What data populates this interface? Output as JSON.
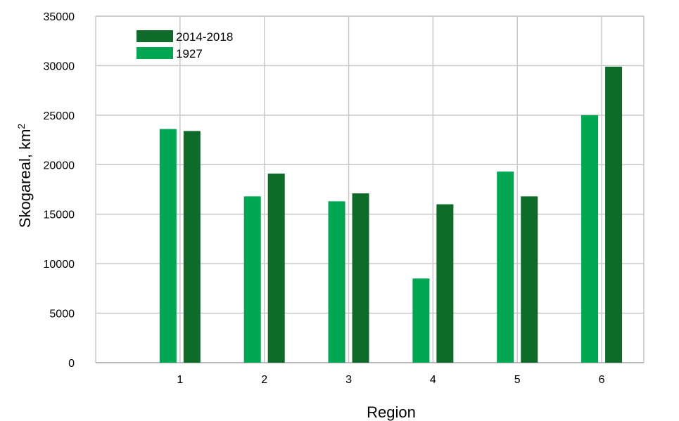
{
  "chart_data": {
    "type": "bar",
    "categories": [
      "1",
      "2",
      "3",
      "4",
      "5",
      "6"
    ],
    "series": [
      {
        "name": "1927",
        "color": "#00a651",
        "values": [
          23600,
          16800,
          16300,
          8500,
          19300,
          25000
        ]
      },
      {
        "name": "2014-2018",
        "color": "#0f6b2a",
        "values": [
          23400,
          19100,
          17100,
          16000,
          16800,
          29900
        ]
      }
    ],
    "legend_order": [
      "2014-2018",
      "1927"
    ],
    "title": "",
    "xlabel": "Region",
    "ylabel_main": "Skogareal, km",
    "ylabel_sup": "2",
    "ylim": [
      0,
      35000
    ],
    "yticks": [
      0,
      5000,
      10000,
      15000,
      20000,
      25000,
      30000,
      35000
    ],
    "grid": true,
    "legend_position": "top-left"
  }
}
